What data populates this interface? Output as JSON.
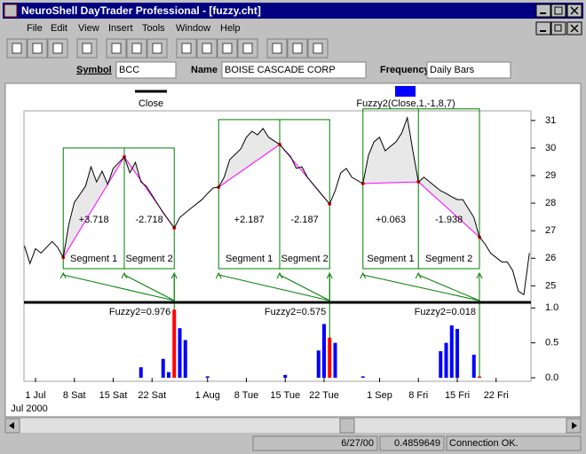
{
  "window": {
    "title": "NeuroShell DayTrader Professional - [fuzzy.cht]"
  },
  "menu": [
    "File",
    "Edit",
    "View",
    "Insert",
    "Tools",
    "Window",
    "Help"
  ],
  "symbol_bar": {
    "symbol_label": "Symbol",
    "symbol": "BCC",
    "name_label": "Name",
    "name": "BOISE CASCADE CORP",
    "frequency_label": "Frequency",
    "frequency": "Daily Bars"
  },
  "chart_data": [
    {
      "type": "line",
      "x": [
        -2,
        -1,
        0,
        1,
        3,
        4,
        5,
        6,
        7,
        9,
        10,
        11,
        12,
        13,
        14,
        16,
        17,
        18,
        19,
        20,
        21,
        23,
        25,
        26,
        27,
        28,
        30,
        31,
        32,
        33,
        34,
        35,
        37,
        38,
        39,
        40,
        41,
        42,
        44,
        45,
        46,
        47,
        48,
        49,
        51,
        53,
        54,
        55,
        56,
        57,
        59,
        60,
        61,
        62,
        63,
        65,
        66,
        67,
        68,
        69,
        70,
        72,
        73,
        74,
        75,
        76,
        77,
        79,
        80,
        81,
        82,
        84,
        85,
        86,
        87,
        88,
        89
      ],
      "series": [
        {
          "name": "Close",
          "color": "#000000",
          "values": [
            26.45,
            25.81,
            26.35,
            26.19,
            26.61,
            26.39,
            26.03,
            27.23,
            28.03,
            28.61,
            29.32,
            28.77,
            29.16,
            28.68,
            29.26,
            29.68,
            29.1,
            29.48,
            28.77,
            28.61,
            28.29,
            27.65,
            27.1,
            27.48,
            27.65,
            27.81,
            28.13,
            28.35,
            28.55,
            28.58,
            28.94,
            29.58,
            29.97,
            30.39,
            30.61,
            30.48,
            30.71,
            30.39,
            30.13,
            29.9,
            29.68,
            29.26,
            29.32,
            28.94,
            28.45,
            27.97,
            28.45,
            29.1,
            29.26,
            28.94,
            28.71,
            29.74,
            30.23,
            30.39,
            29.9,
            30.23,
            30.55,
            31.1,
            29.9,
            28.77,
            28.94,
            28.61,
            28.45,
            28.35,
            28.23,
            28.13,
            28.13,
            27.48,
            26.77,
            26.52,
            26.19,
            25.87,
            25.87,
            25.55,
            24.81,
            24.68,
            26.19
          ]
        }
      ],
      "segments": [
        {
          "color": "#ff00ff",
          "x": [
            5,
            16,
            25
          ],
          "values": [
            26.03,
            29.68,
            27.1
          ],
          "changes": [
            "+3.718",
            "-2.718"
          ],
          "labels": [
            "Segment 1",
            "Segment 2"
          ]
        },
        {
          "color": "#ff00ff",
          "x": [
            33,
            44,
            53
          ],
          "values": [
            28.58,
            30.13,
            27.97
          ],
          "changes": [
            "+2.187",
            "-2.187"
          ],
          "labels": [
            "Segment 1",
            "Segment 2"
          ]
        },
        {
          "color": "#ff00ff",
          "x": [
            59,
            69,
            80
          ],
          "values": [
            28.71,
            28.77,
            26.77
          ],
          "changes": [
            "+0.063",
            "-1.938"
          ],
          "labels": [
            "Segment 1",
            "Segment 2"
          ]
        }
      ],
      "xlim": [
        -2.08,
        89.28
      ],
      "ylim": [
        24.4,
        31.35
      ],
      "yticks": [
        25,
        26,
        27,
        28,
        29,
        30,
        31
      ]
    },
    {
      "type": "bar",
      "series": [
        {
          "name": "Fuzzy2(Close,1,-1,8,7)",
          "color": "#0000ff",
          "x": [
            19,
            23,
            24,
            26,
            27,
            31,
            45,
            51,
            52,
            54,
            59,
            73,
            74,
            75,
            76,
            79
          ],
          "values": [
            0.15,
            0.27,
            0.08,
            0.71,
            0.54,
            0.02,
            0.04,
            0.39,
            0.77,
            0.5,
            0.02,
            0.38,
            0.5,
            0.75,
            0.7,
            0.33
          ]
        },
        {
          "color": "#ff0000",
          "x": [
            25,
            53,
            80
          ],
          "values": [
            0.976,
            0.575,
            0.018
          ],
          "value_labels": [
            "Fuzzy2=0.976",
            "Fuzzy2=0.575",
            "Fuzzy2=0.018"
          ]
        }
      ],
      "xlim": [
        -2.08,
        89.28
      ],
      "ylim": [
        0,
        1.08
      ],
      "yticks": [
        {
          "value": 0,
          "label": "0.0"
        },
        {
          "value": 0.5,
          "label": "0.5"
        },
        {
          "value": 1,
          "label": "1.0"
        }
      ],
      "xticks": [
        {
          "value": 0,
          "label": "1 Jul"
        },
        {
          "value": 7,
          "label": "8 Sat"
        },
        {
          "value": 14,
          "label": "15 Sat"
        },
        {
          "value": 21,
          "label": "22 Sat"
        },
        {
          "value": 31,
          "label": "1 Aug"
        },
        {
          "value": 38,
          "label": "8 Tue"
        },
        {
          "value": 45,
          "label": "15 Tue"
        },
        {
          "value": 52,
          "label": "22 Tue"
        },
        {
          "value": 62,
          "label": "1 Sep"
        },
        {
          "value": 69,
          "label": "8 Fri"
        },
        {
          "value": 76,
          "label": "15 Fri"
        },
        {
          "value": 83,
          "label": "22 Fri"
        }
      ],
      "x_label": "Jul 2000"
    }
  ],
  "status_bar": [
    "6/27/00",
    "0.4859649",
    "Connection OK."
  ]
}
